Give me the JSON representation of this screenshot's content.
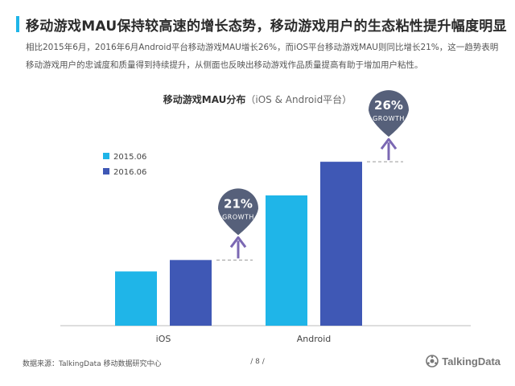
{
  "header": {
    "title": "移动游戏MAU保持较高速的增长态势，移动游戏用户的生态粘性提升幅度明显",
    "description": "相比2015年6月，2016年6月Android平台移动游戏MAU增长26%，而iOS平台移动游戏MAU则同比增长21%，这一趋势表明移动游戏用户的忠诚度和质量得到持续提升，从侧面也反映出移动游戏作品质量提高有助于增加用户粘性。"
  },
  "chart_data": {
    "type": "bar",
    "title": "移动游戏MAU分布",
    "subtitle": "（iOS & Android平台）",
    "categories": [
      "iOS",
      "Android"
    ],
    "series": [
      {
        "name": "2015.06",
        "values": [
          100,
          240
        ]
      },
      {
        "name": "2016.06",
        "values": [
          121,
          302
        ]
      }
    ],
    "ylim": [
      0,
      400
    ],
    "grid": false,
    "legend_position": "top-left",
    "annotations": [
      {
        "category": "iOS",
        "value": "21%",
        "label": "GROWTH"
      },
      {
        "category": "Android",
        "value": "26%",
        "label": "GROWTH"
      }
    ],
    "colors": {
      "series": [
        "#1fb5e8",
        "#3f58b5"
      ],
      "badge": "#56607a",
      "arrow": "#7b68b3"
    }
  },
  "footer": {
    "source": "数据来源：TalkingData  移动数据研究中心",
    "page": "/ 8 /",
    "logo_text": "TalkingData",
    "logo_icon": "talkingdata-logo-icon"
  }
}
